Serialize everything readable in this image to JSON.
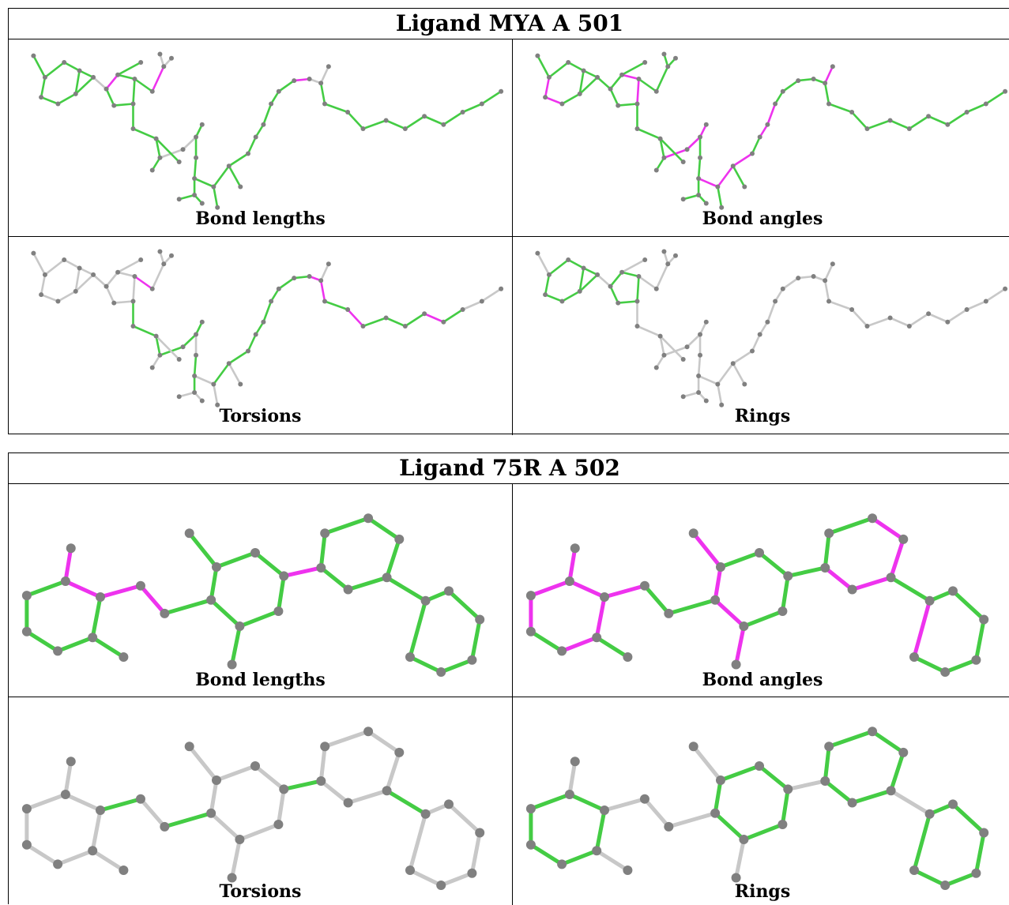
{
  "ligands": [
    {
      "title": "Ligand MYA A 501",
      "panels": [
        {
          "label": "Bond lengths"
        },
        {
          "label": "Bond angles"
        },
        {
          "label": "Torsions"
        },
        {
          "label": "Rings"
        }
      ]
    },
    {
      "title": "Ligand 75R A 502",
      "panels": [
        {
          "label": "Bond lengths"
        },
        {
          "label": "Bond angles"
        },
        {
          "label": "Torsions"
        },
        {
          "label": "Rings"
        }
      ]
    }
  ],
  "colors": {
    "ok": "#44cc44",
    "outlier": "#ee33ee",
    "unassessed": "#c8c8c8",
    "atom": "#808080"
  }
}
